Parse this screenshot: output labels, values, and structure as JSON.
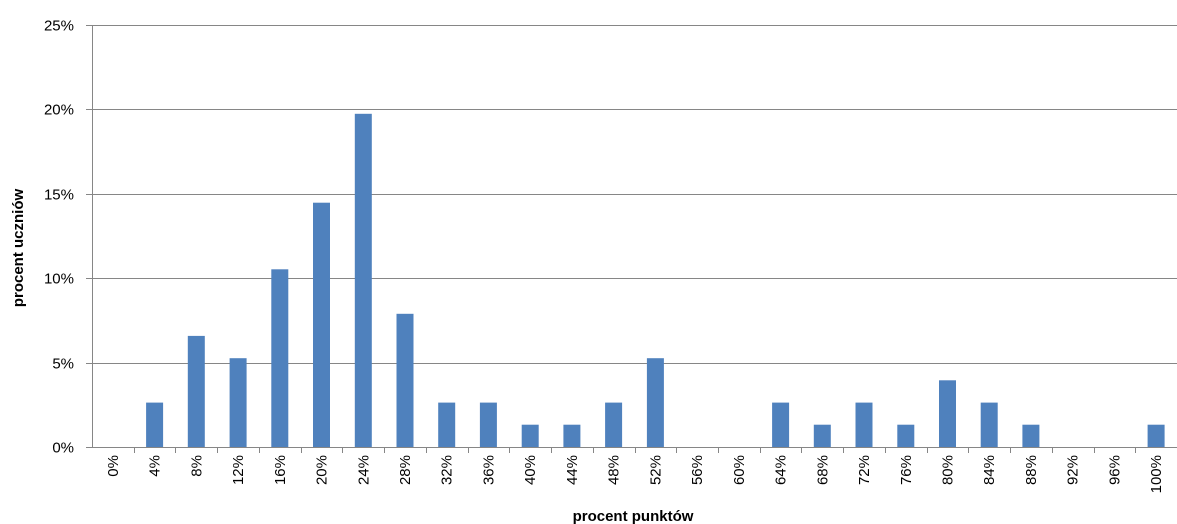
{
  "chart_data": {
    "type": "bar",
    "xlabel": "procent  punktów",
    "ylabel": "procent  uczniów",
    "categories": [
      "0%",
      "4%",
      "8%",
      "12%",
      "16%",
      "20%",
      "24%",
      "28%",
      "32%",
      "36%",
      "40%",
      "44%",
      "48%",
      "52%",
      "56%",
      "60%",
      "64%",
      "68%",
      "72%",
      "76%",
      "80%",
      "84%",
      "88%",
      "92%",
      "96%",
      "100%"
    ],
    "values": [
      0,
      2.63,
      6.58,
      5.26,
      10.53,
      14.47,
      19.74,
      7.89,
      2.63,
      2.63,
      1.32,
      1.32,
      2.63,
      5.26,
      0,
      0,
      2.63,
      1.32,
      2.63,
      1.32,
      3.95,
      2.63,
      1.32,
      0,
      0,
      1.32
    ],
    "ylim": [
      0,
      25
    ],
    "yticks": [
      0,
      5,
      10,
      15,
      20,
      25
    ],
    "ytick_labels": [
      "0%",
      "5%",
      "10%",
      "15%",
      "20%",
      "25%"
    ],
    "grid": true,
    "legend": "none",
    "colors": {
      "bar": "#4F81BD",
      "grid": "#868686",
      "axis": "#868686"
    }
  }
}
